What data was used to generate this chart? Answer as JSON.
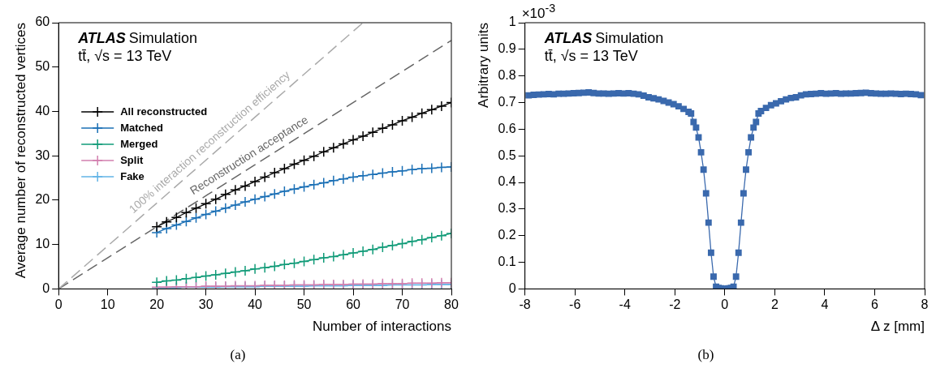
{
  "chart_data": [
    {
      "type": "line",
      "xlabel": "Number of interactions",
      "ylabel": "Average number of reconstructed vertices",
      "annotations": [
        "ATLAS",
        "Simulation",
        "tt̄, √s = 13 TeV",
        "(a)"
      ],
      "xlim": [
        0,
        80
      ],
      "ylim": [
        0,
        60
      ],
      "xticks": [
        0,
        10,
        20,
        30,
        40,
        50,
        60,
        70,
        80
      ],
      "yticks": [
        0,
        10,
        20,
        30,
        40,
        50,
        60
      ],
      "legend": "top left",
      "marker": "cross",
      "x": [
        20,
        22,
        24,
        26,
        28,
        30,
        32,
        34,
        36,
        38,
        40,
        42,
        44,
        46,
        48,
        50,
        52,
        54,
        56,
        58,
        60,
        62,
        64,
        66,
        68,
        70,
        72,
        74,
        76,
        78,
        80
      ],
      "series": [
        {
          "name": "All reconstructed",
          "color": "#000000",
          "values": [
            14.0,
            15.1,
            16.1,
            17.2,
            18.2,
            19.2,
            20.2,
            21.3,
            22.3,
            23.2,
            24.2,
            25.2,
            26.2,
            27.1,
            28.1,
            29.0,
            29.9,
            30.9,
            31.8,
            32.7,
            33.6,
            34.4,
            35.3,
            36.2,
            37.0,
            37.9,
            38.7,
            39.6,
            40.4,
            41.2,
            42.0
          ]
        },
        {
          "name": "Matched",
          "color": "#1a6fb5",
          "values": [
            12.7,
            13.6,
            14.4,
            15.2,
            16.0,
            16.8,
            17.5,
            18.2,
            18.9,
            19.6,
            20.2,
            20.8,
            21.4,
            22.0,
            22.5,
            23.0,
            23.5,
            23.9,
            24.4,
            24.8,
            25.2,
            25.5,
            25.8,
            26.1,
            26.4,
            26.6,
            26.9,
            27.1,
            27.2,
            27.4,
            27.5
          ]
        },
        {
          "name": "Merged",
          "color": "#119b78",
          "values": [
            1.5,
            1.8,
            2.0,
            2.3,
            2.6,
            2.9,
            3.2,
            3.5,
            3.8,
            4.1,
            4.5,
            4.8,
            5.1,
            5.5,
            5.8,
            6.2,
            6.6,
            7.0,
            7.3,
            7.7,
            8.1,
            8.5,
            8.9,
            9.4,
            9.8,
            10.2,
            10.7,
            11.1,
            11.6,
            12.0,
            12.5
          ]
        },
        {
          "name": "Split",
          "color": "#d27fae",
          "values": [
            0.4,
            0.4,
            0.5,
            0.5,
            0.5,
            0.6,
            0.6,
            0.6,
            0.7,
            0.7,
            0.7,
            0.8,
            0.8,
            0.8,
            0.9,
            0.9,
            0.9,
            1.0,
            1.0,
            1.0,
            1.1,
            1.1,
            1.1,
            1.2,
            1.2,
            1.2,
            1.3,
            1.3,
            1.3,
            1.4,
            1.4
          ]
        },
        {
          "name": "Fake",
          "color": "#62b4e6",
          "values": [
            0.3,
            0.3,
            0.3,
            0.4,
            0.4,
            0.4,
            0.4,
            0.5,
            0.5,
            0.5,
            0.5,
            0.6,
            0.6,
            0.6,
            0.6,
            0.6,
            0.7,
            0.7,
            0.7,
            0.7,
            0.8,
            0.8,
            0.8,
            0.8,
            0.9,
            0.9,
            0.9,
            0.9,
            1.0,
            1.0,
            1.0
          ]
        },
        {
          "name": "100% interaction reconstruction efficiency",
          "color": "#aaaaaa",
          "type": "line",
          "line_style": "dashed",
          "marker": "none",
          "x": [
            0,
            62
          ],
          "values": [
            0,
            60
          ]
        },
        {
          "name": "Reconstruction acceptance",
          "color": "#666666",
          "type": "line",
          "line_style": "dashed",
          "marker": "none",
          "x": [
            0,
            80
          ],
          "values": [
            0,
            56
          ]
        }
      ]
    },
    {
      "type": "line",
      "xlabel": "Δ z [mm]",
      "ylabel": "Arbitrary units",
      "annotations": [
        "ATLAS",
        "Simulation",
        "tt̄, √s = 13 TeV",
        "×10$^{-3}$",
        "(b)"
      ],
      "xlim": [
        -8,
        8
      ],
      "ylim": [
        0,
        1
      ],
      "xticks": [
        -8,
        -6,
        -4,
        -2,
        0,
        2,
        4,
        6,
        8
      ],
      "yticks": [
        0,
        0.1,
        0.2,
        0.3,
        0.4,
        0.5,
        0.6,
        0.7,
        0.8,
        0.9,
        1
      ],
      "marker": "square",
      "series": [
        {
          "color": "#3a69ad",
          "x": [
            -7.85,
            -7.65,
            -7.45,
            -7.25,
            -7.05,
            -6.85,
            -6.65,
            -6.45,
            -6.25,
            -6.05,
            -5.85,
            -5.65,
            -5.45,
            -5.25,
            -5.05,
            -4.85,
            -4.65,
            -4.45,
            -4.25,
            -4.05,
            -3.85,
            -3.65,
            -3.45,
            -3.25,
            -3.05,
            -2.85,
            -2.65,
            -2.45,
            -2.25,
            -2.05,
            -1.85,
            -1.65,
            -1.45,
            -1.35,
            -1.25,
            -1.15,
            -1.05,
            -0.95,
            -0.85,
            -0.75,
            -0.65,
            -0.55,
            -0.45,
            -0.35,
            -0.25,
            -0.15,
            -0.05,
            0.05,
            0.15,
            0.25,
            0.35,
            0.45,
            0.55,
            0.65,
            0.75,
            0.85,
            0.95,
            1.05,
            1.15,
            1.25,
            1.35,
            1.45,
            1.65,
            1.85,
            2.05,
            2.25,
            2.45,
            2.65,
            2.85,
            3.05,
            3.25,
            3.45,
            3.65,
            3.85,
            4.05,
            4.25,
            4.45,
            4.65,
            4.85,
            5.05,
            5.25,
            5.45,
            5.65,
            5.85,
            6.05,
            6.25,
            6.45,
            6.65,
            6.85,
            7.05,
            7.25,
            7.45,
            7.65,
            7.85
          ],
          "values": [
            0.727,
            0.729,
            0.73,
            0.731,
            0.732,
            0.731,
            0.733,
            0.733,
            0.734,
            0.735,
            0.736,
            0.737,
            0.738,
            0.736,
            0.734,
            0.734,
            0.733,
            0.734,
            0.735,
            0.734,
            0.735,
            0.733,
            0.731,
            0.726,
            0.72,
            0.716,
            0.712,
            0.706,
            0.7,
            0.694,
            0.686,
            0.676,
            0.665,
            0.659,
            0.627,
            0.606,
            0.569,
            0.513,
            0.448,
            0.359,
            0.249,
            0.136,
            0.046,
            0.008,
            0.004,
            0.002,
            0.001,
            0.001,
            0.002,
            0.004,
            0.008,
            0.046,
            0.136,
            0.249,
            0.359,
            0.448,
            0.513,
            0.569,
            0.606,
            0.627,
            0.659,
            0.668,
            0.68,
            0.69,
            0.697,
            0.705,
            0.712,
            0.717,
            0.72,
            0.727,
            0.731,
            0.732,
            0.733,
            0.735,
            0.733,
            0.734,
            0.735,
            0.733,
            0.734,
            0.734,
            0.735,
            0.736,
            0.737,
            0.735,
            0.734,
            0.733,
            0.733,
            0.734,
            0.733,
            0.732,
            0.733,
            0.732,
            0.731,
            0.728
          ]
        }
      ]
    }
  ]
}
